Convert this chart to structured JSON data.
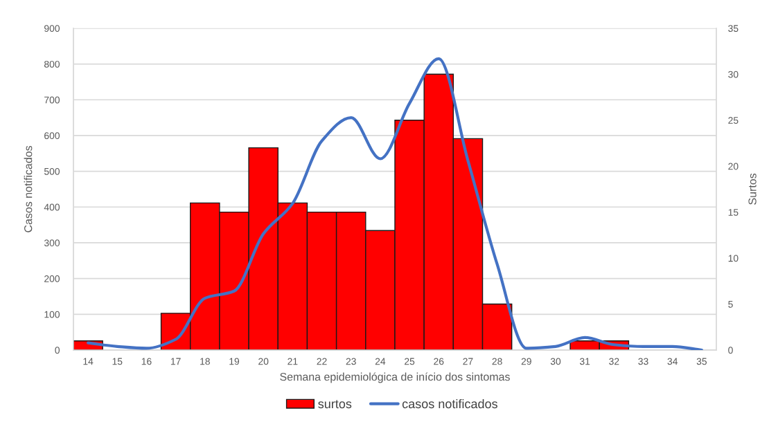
{
  "chart_data": {
    "type": "bar",
    "categories": [
      "14",
      "15",
      "16",
      "17",
      "18",
      "19",
      "20",
      "21",
      "22",
      "23",
      "24",
      "25",
      "26",
      "27",
      "28",
      "29",
      "30",
      "31",
      "32",
      "33",
      "34",
      "35"
    ],
    "xlabel": "Semana epidemiológica de início dos sintomas",
    "ylabel": "Casos notificados",
    "y2label": "Surtos",
    "ylim": [
      0,
      900
    ],
    "yticks": [
      0,
      100,
      200,
      300,
      400,
      500,
      600,
      700,
      800,
      900
    ],
    "y2lim": [
      0,
      35
    ],
    "y2ticks": [
      0,
      5,
      10,
      15,
      20,
      25,
      30,
      35
    ],
    "grid": "y",
    "legend": "bottom",
    "series": [
      {
        "name": "surtos",
        "axis": "y2",
        "color": "#ff0000",
        "values": [
          1,
          null,
          null,
          4,
          16,
          15,
          22,
          16,
          15,
          15,
          13,
          25,
          30,
          23,
          5,
          null,
          null,
          1,
          1,
          null,
          null,
          null
        ]
      },
      {
        "name": "casos notificados",
        "type": "line",
        "axis": "y",
        "color": "#4472c4",
        "values": [
          20,
          10,
          5,
          30,
          145,
          165,
          325,
          410,
          585,
          650,
          535,
          690,
          815,
          530,
          240,
          5,
          10,
          35,
          15,
          10,
          10,
          0
        ]
      }
    ]
  }
}
